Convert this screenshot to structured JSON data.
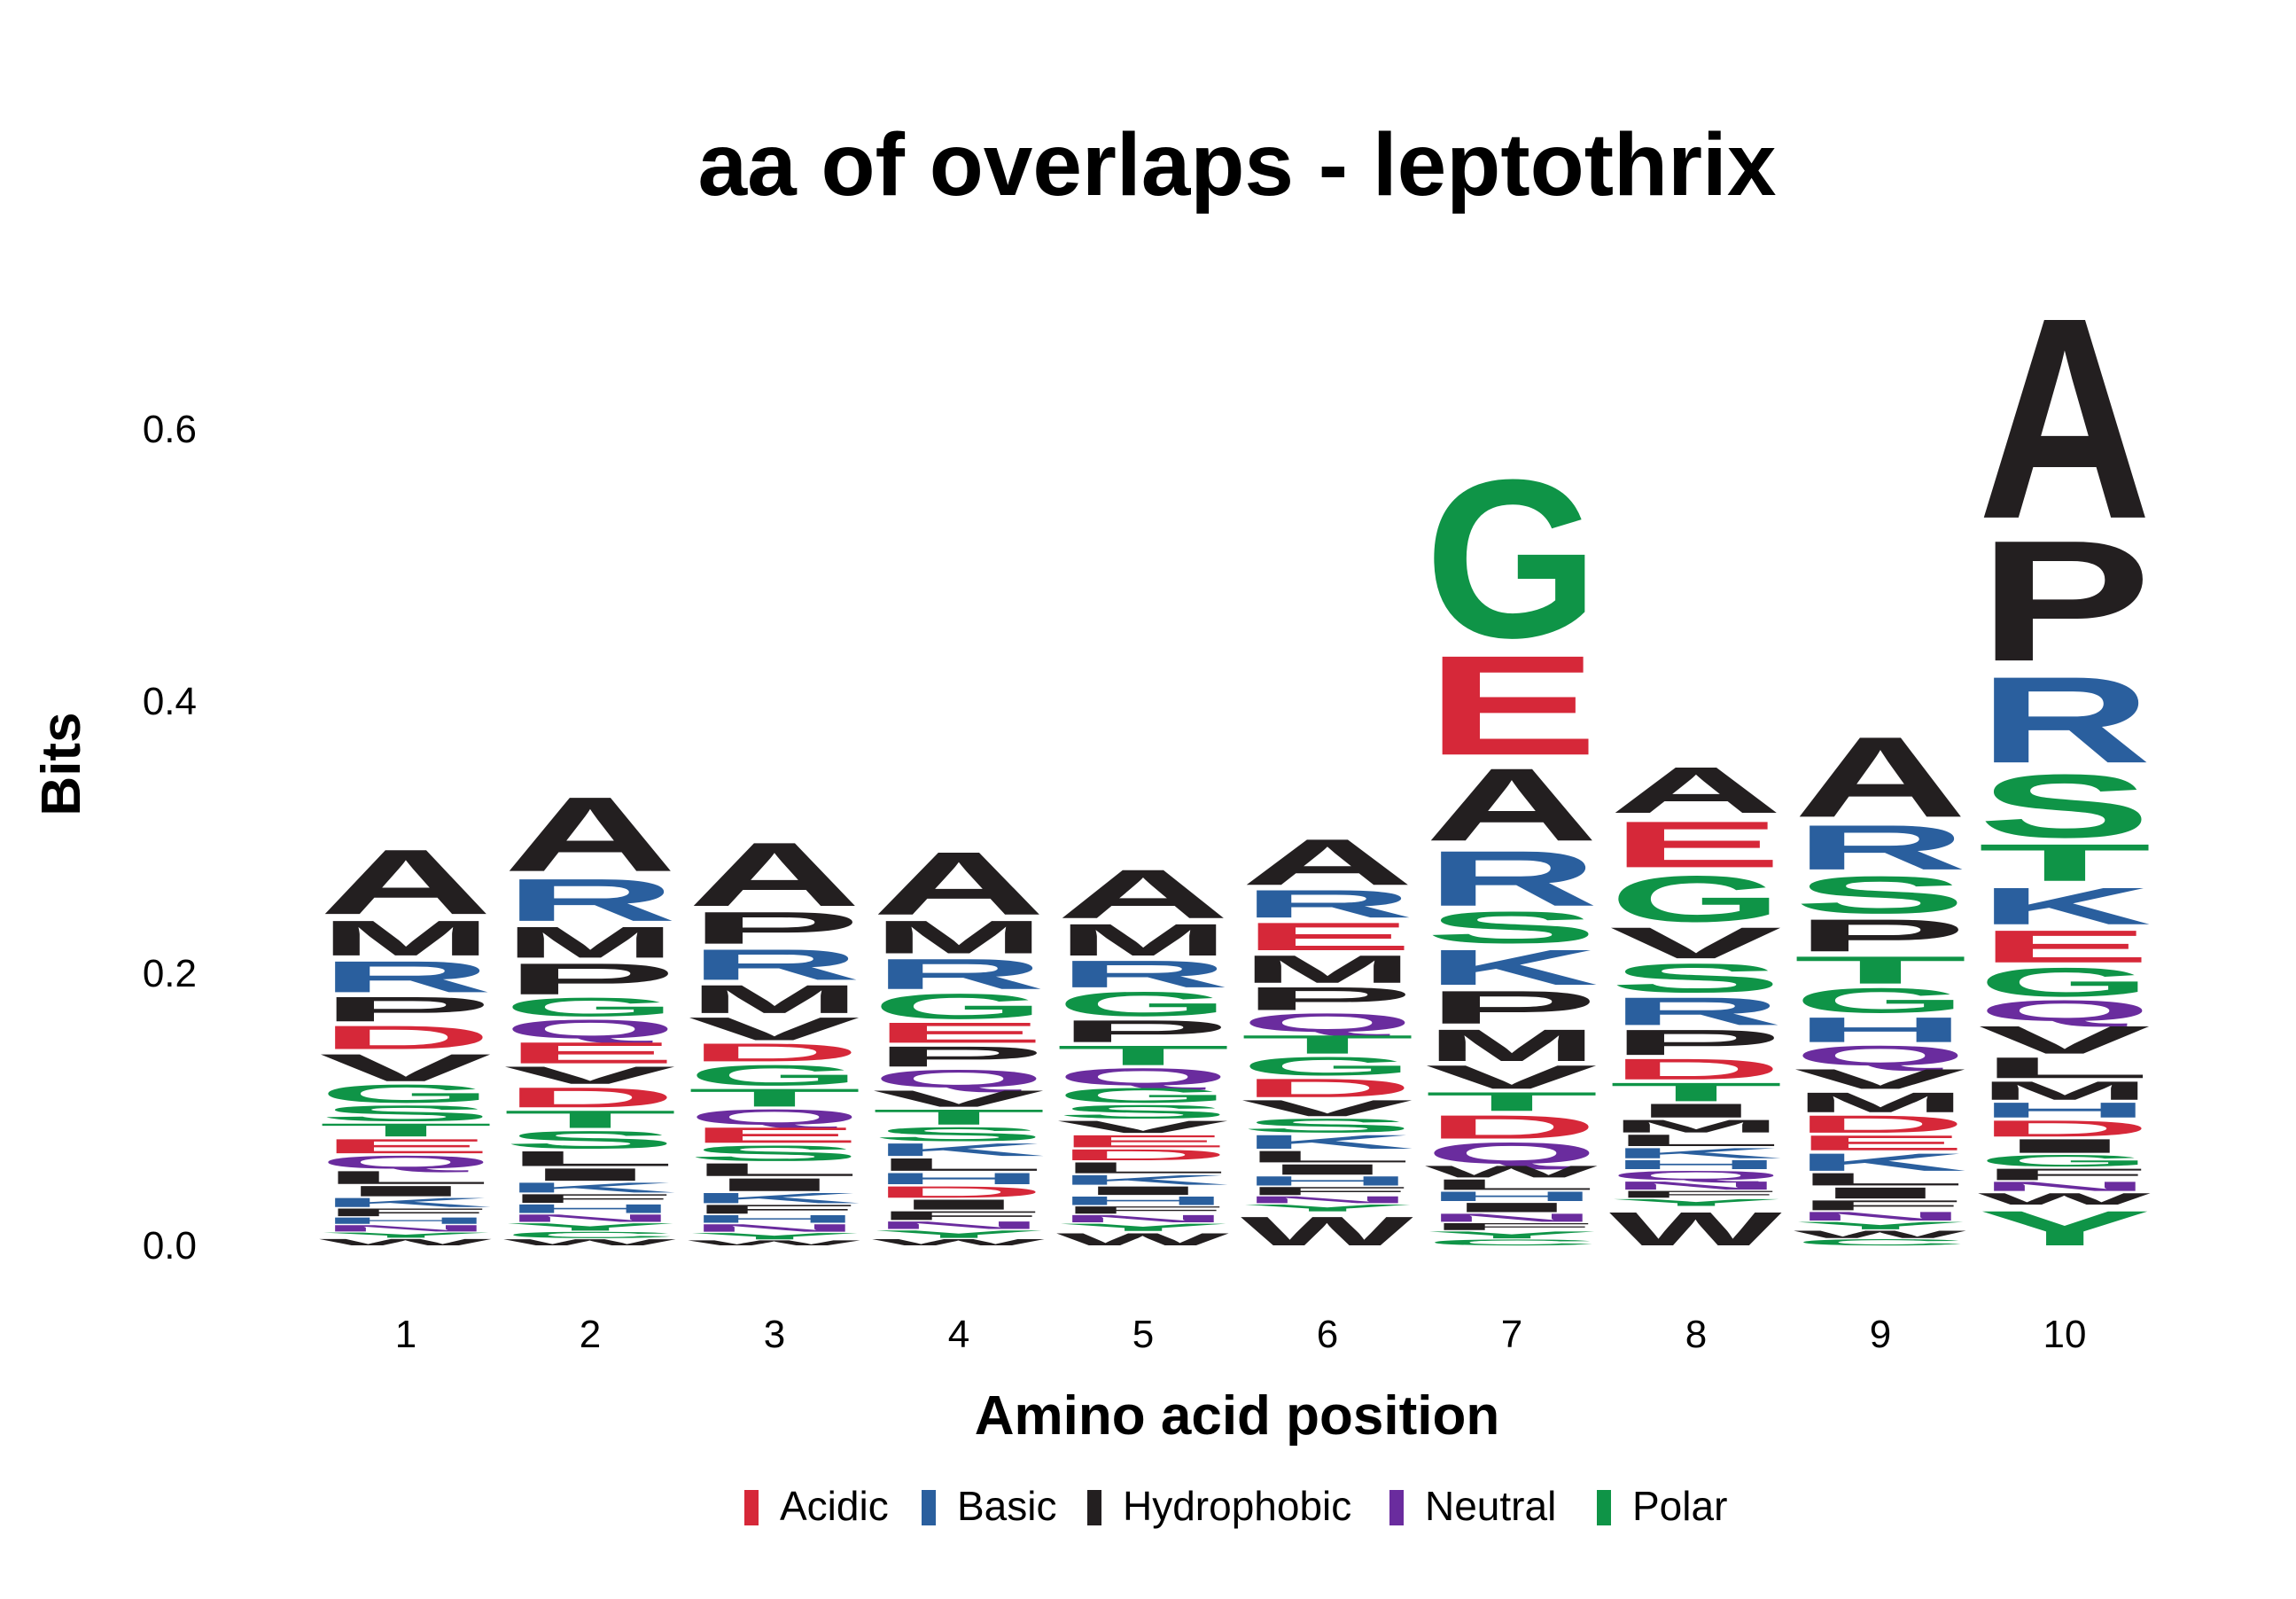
{
  "chart_data": {
    "type": "sequence-logo",
    "title": "aa of overlaps - leptothrix",
    "xlabel": "Amino acid position",
    "ylabel": "Bits",
    "ylim": [
      0,
      0.72
    ],
    "yticks": [
      0.0,
      0.2,
      0.4,
      0.6
    ],
    "ytick_labels": [
      "0.0",
      "0.2",
      "0.4",
      "0.6"
    ],
    "categories": [
      "1",
      "2",
      "3",
      "4",
      "5",
      "6",
      "7",
      "8",
      "9",
      "10"
    ],
    "grid": false,
    "legend_position": "bottom",
    "legend": [
      {
        "label": "Acidic",
        "color": "#d62839"
      },
      {
        "label": "Basic",
        "color": "#2a5f9e"
      },
      {
        "label": "Hydrophobic",
        "color": "#231f20"
      },
      {
        "label": "Neutral",
        "color": "#6a2c9e"
      },
      {
        "label": "Polar",
        "color": "#0f9447"
      }
    ],
    "class_colors": {
      "Acidic": "#d62839",
      "Basic": "#2a5f9e",
      "Hydrophobic": "#231f20",
      "Neutral": "#6a2c9e",
      "Polar": "#0f9447",
      "Other": "#b0b0b0"
    },
    "residue_class": {
      "D": "Acidic",
      "E": "Acidic",
      "K": "Basic",
      "R": "Basic",
      "H": "Basic",
      "A": "Hydrophobic",
      "V": "Hydrophobic",
      "L": "Hydrophobic",
      "I": "Hydrophobic",
      "P": "Hydrophobic",
      "M": "Hydrophobic",
      "F": "Hydrophobic",
      "W": "Hydrophobic",
      "Q": "Neutral",
      "N": "Neutral",
      "G": "Polar",
      "S": "Polar",
      "T": "Polar",
      "Y": "Polar",
      "C": "Polar"
    },
    "positions": [
      {
        "position": "1",
        "total": 0.3,
        "letters": [
          {
            "aa": "A",
            "bits": 0.05
          },
          {
            "aa": "M",
            "bits": 0.027
          },
          {
            "aa": "R",
            "bits": 0.024
          },
          {
            "aa": "P",
            "bits": 0.019
          },
          {
            "aa": "D",
            "bits": 0.018
          },
          {
            "aa": "V",
            "bits": 0.021
          },
          {
            "aa": "G",
            "bits": 0.014
          },
          {
            "aa": "S",
            "bits": 0.012
          },
          {
            "aa": "T",
            "bits": 0.01
          },
          {
            "aa": "E",
            "bits": 0.011
          },
          {
            "aa": "Q",
            "bits": 0.01
          },
          {
            "aa": "L",
            "bits": 0.01
          },
          {
            "aa": "I",
            "bits": 0.008
          },
          {
            "aa": "K",
            "bits": 0.007
          },
          {
            "aa": "F",
            "bits": 0.006
          },
          {
            "aa": "H",
            "bits": 0.005
          },
          {
            "aa": "N",
            "bits": 0.005
          },
          {
            "aa": "Y",
            "bits": 0.004
          },
          {
            "aa": "W",
            "bits": 0.005
          }
        ]
      },
      {
        "position": "2",
        "total": 0.34,
        "letters": [
          {
            "aa": "A",
            "bits": 0.06
          },
          {
            "aa": "R",
            "bits": 0.034
          },
          {
            "aa": "M",
            "bits": 0.025
          },
          {
            "aa": "P",
            "bits": 0.025
          },
          {
            "aa": "G",
            "bits": 0.015
          },
          {
            "aa": "Q",
            "bits": 0.015
          },
          {
            "aa": "E",
            "bits": 0.017
          },
          {
            "aa": "V",
            "bits": 0.014
          },
          {
            "aa": "D",
            "bits": 0.016
          },
          {
            "aa": "T",
            "bits": 0.014
          },
          {
            "aa": "S",
            "bits": 0.014
          },
          {
            "aa": "L",
            "bits": 0.012
          },
          {
            "aa": "I",
            "bits": 0.01
          },
          {
            "aa": "K",
            "bits": 0.008
          },
          {
            "aa": "F",
            "bits": 0.007
          },
          {
            "aa": "H",
            "bits": 0.007
          },
          {
            "aa": "N",
            "bits": 0.006
          },
          {
            "aa": "Y",
            "bits": 0.006
          },
          {
            "aa": "C",
            "bits": 0.005
          },
          {
            "aa": "W",
            "bits": 0.005
          }
        ]
      },
      {
        "position": "3",
        "total": 0.305,
        "letters": [
          {
            "aa": "A",
            "bits": 0.05
          },
          {
            "aa": "P",
            "bits": 0.025
          },
          {
            "aa": "R",
            "bits": 0.024
          },
          {
            "aa": "M",
            "bits": 0.022
          },
          {
            "aa": "V",
            "bits": 0.018
          },
          {
            "aa": "D",
            "bits": 0.014
          },
          {
            "aa": "G",
            "bits": 0.016
          },
          {
            "aa": "T",
            "bits": 0.014
          },
          {
            "aa": "Q",
            "bits": 0.012
          },
          {
            "aa": "E",
            "bits": 0.012
          },
          {
            "aa": "S",
            "bits": 0.012
          },
          {
            "aa": "L",
            "bits": 0.01
          },
          {
            "aa": "I",
            "bits": 0.01
          },
          {
            "aa": "K",
            "bits": 0.008
          },
          {
            "aa": "F",
            "bits": 0.007
          },
          {
            "aa": "H",
            "bits": 0.006
          },
          {
            "aa": "N",
            "bits": 0.006
          },
          {
            "aa": "Y",
            "bits": 0.005
          },
          {
            "aa": "W",
            "bits": 0.004
          }
        ]
      },
      {
        "position": "4",
        "total": 0.298,
        "letters": [
          {
            "aa": "A",
            "bits": 0.05
          },
          {
            "aa": "M",
            "bits": 0.026
          },
          {
            "aa": "R",
            "bits": 0.024
          },
          {
            "aa": "G",
            "bits": 0.02
          },
          {
            "aa": "E",
            "bits": 0.016
          },
          {
            "aa": "P",
            "bits": 0.016
          },
          {
            "aa": "Q",
            "bits": 0.014
          },
          {
            "aa": "V",
            "bits": 0.013
          },
          {
            "aa": "T",
            "bits": 0.012
          },
          {
            "aa": "S",
            "bits": 0.011
          },
          {
            "aa": "K",
            "bits": 0.01
          },
          {
            "aa": "L",
            "bits": 0.01
          },
          {
            "aa": "H",
            "bits": 0.009
          },
          {
            "aa": "D",
            "bits": 0.009
          },
          {
            "aa": "I",
            "bits": 0.008
          },
          {
            "aa": "F",
            "bits": 0.007
          },
          {
            "aa": "N",
            "bits": 0.006
          },
          {
            "aa": "Y",
            "bits": 0.006
          },
          {
            "aa": "W",
            "bits": 0.005
          }
        ]
      },
      {
        "position": "5",
        "total": 0.283,
        "letters": [
          {
            "aa": "A",
            "bits": 0.04
          },
          {
            "aa": "M",
            "bits": 0.026
          },
          {
            "aa": "R",
            "bits": 0.022
          },
          {
            "aa": "G",
            "bits": 0.02
          },
          {
            "aa": "P",
            "bits": 0.018
          },
          {
            "aa": "T",
            "bits": 0.016
          },
          {
            "aa": "Q",
            "bits": 0.014
          },
          {
            "aa": "G",
            "bits": 0.012
          },
          {
            "aa": "S",
            "bits": 0.011
          },
          {
            "aa": "V",
            "bits": 0.01
          },
          {
            "aa": "E",
            "bits": 0.01
          },
          {
            "aa": "D",
            "bits": 0.009
          },
          {
            "aa": "L",
            "bits": 0.009
          },
          {
            "aa": "K",
            "bits": 0.008
          },
          {
            "aa": "I",
            "bits": 0.007
          },
          {
            "aa": "H",
            "bits": 0.007
          },
          {
            "aa": "F",
            "bits": 0.006
          },
          {
            "aa": "N",
            "bits": 0.006
          },
          {
            "aa": "Y",
            "bits": 0.006
          },
          {
            "aa": "W",
            "bits": 0.01
          }
        ]
      },
      {
        "position": "6",
        "total": 0.305,
        "letters": [
          {
            "aa": "A",
            "bits": 0.04
          },
          {
            "aa": "R",
            "bits": 0.024
          },
          {
            "aa": "E",
            "bits": 0.024
          },
          {
            "aa": "M",
            "bits": 0.024
          },
          {
            "aa": "P",
            "bits": 0.02
          },
          {
            "aa": "Q",
            "bits": 0.016
          },
          {
            "aa": "T",
            "bits": 0.016
          },
          {
            "aa": "G",
            "bits": 0.016
          },
          {
            "aa": "D",
            "bits": 0.016
          },
          {
            "aa": "V",
            "bits": 0.014
          },
          {
            "aa": "S",
            "bits": 0.012
          },
          {
            "aa": "K",
            "bits": 0.012
          },
          {
            "aa": "L",
            "bits": 0.01
          },
          {
            "aa": "I",
            "bits": 0.009
          },
          {
            "aa": "H",
            "bits": 0.008
          },
          {
            "aa": "F",
            "bits": 0.007
          },
          {
            "aa": "N",
            "bits": 0.006
          },
          {
            "aa": "Y",
            "bits": 0.006
          },
          {
            "aa": "W",
            "bits": 0.025
          }
        ]
      },
      {
        "position": "7",
        "total": 0.585,
        "letters": [
          {
            "aa": "G",
            "bits": 0.135
          },
          {
            "aa": "E",
            "bits": 0.085
          },
          {
            "aa": "A",
            "bits": 0.062
          },
          {
            "aa": "R",
            "bits": 0.047
          },
          {
            "aa": "S",
            "bits": 0.027
          },
          {
            "aa": "K",
            "bits": 0.03
          },
          {
            "aa": "P",
            "bits": 0.028
          },
          {
            "aa": "M",
            "bits": 0.027
          },
          {
            "aa": "V",
            "bits": 0.02
          },
          {
            "aa": "T",
            "bits": 0.016
          },
          {
            "aa": "D",
            "bits": 0.02
          },
          {
            "aa": "Q",
            "bits": 0.018
          },
          {
            "aa": "W",
            "bits": 0.01
          },
          {
            "aa": "L",
            "bits": 0.009
          },
          {
            "aa": "H",
            "bits": 0.008
          },
          {
            "aa": "I",
            "bits": 0.008
          },
          {
            "aa": "N",
            "bits": 0.007
          },
          {
            "aa": "F",
            "bits": 0.006
          },
          {
            "aa": "Y",
            "bits": 0.006
          },
          {
            "aa": "C",
            "bits": 0.005
          }
        ]
      },
      {
        "position": "8",
        "total": 0.358,
        "letters": [
          {
            "aa": "A",
            "bits": 0.04
          },
          {
            "aa": "E",
            "bits": 0.04
          },
          {
            "aa": "G",
            "bits": 0.04
          },
          {
            "aa": "V",
            "bits": 0.027
          },
          {
            "aa": "S",
            "bits": 0.025
          },
          {
            "aa": "R",
            "bits": 0.024
          },
          {
            "aa": "P",
            "bits": 0.022
          },
          {
            "aa": "D",
            "bits": 0.018
          },
          {
            "aa": "T",
            "bits": 0.016
          },
          {
            "aa": "I",
            "bits": 0.012
          },
          {
            "aa": "M",
            "bits": 0.011
          },
          {
            "aa": "L",
            "bits": 0.01
          },
          {
            "aa": "K",
            "bits": 0.009
          },
          {
            "aa": "H",
            "bits": 0.008
          },
          {
            "aa": "Q",
            "bits": 0.008
          },
          {
            "aa": "N",
            "bits": 0.007
          },
          {
            "aa": "F",
            "bits": 0.006
          },
          {
            "aa": "Y",
            "bits": 0.006
          },
          {
            "aa": "W",
            "bits": 0.029
          }
        ]
      },
      {
        "position": "9",
        "total": 0.385,
        "letters": [
          {
            "aa": "A",
            "bits": 0.065
          },
          {
            "aa": "R",
            "bits": 0.036
          },
          {
            "aa": "S",
            "bits": 0.03
          },
          {
            "aa": "P",
            "bits": 0.026
          },
          {
            "aa": "T",
            "bits": 0.022
          },
          {
            "aa": "G",
            "bits": 0.02
          },
          {
            "aa": "H",
            "bits": 0.02
          },
          {
            "aa": "Q",
            "bits": 0.016
          },
          {
            "aa": "V",
            "bits": 0.016
          },
          {
            "aa": "M",
            "bits": 0.016
          },
          {
            "aa": "D",
            "bits": 0.014
          },
          {
            "aa": "E",
            "bits": 0.012
          },
          {
            "aa": "K",
            "bits": 0.014
          },
          {
            "aa": "L",
            "bits": 0.01
          },
          {
            "aa": "I",
            "bits": 0.009
          },
          {
            "aa": "F",
            "bits": 0.008
          },
          {
            "aa": "N",
            "bits": 0.007
          },
          {
            "aa": "Y",
            "bits": 0.006
          },
          {
            "aa": "W",
            "bits": 0.006
          },
          {
            "aa": "C",
            "bits": 0.005
          }
        ]
      },
      {
        "position": "10",
        "total": 0.71,
        "letters": [
          {
            "aa": "A",
            "bits": 0.175
          },
          {
            "aa": "P",
            "bits": 0.105
          },
          {
            "aa": "R",
            "bits": 0.075
          },
          {
            "aa": "S",
            "bits": 0.055
          },
          {
            "aa": "T",
            "bits": 0.032
          },
          {
            "aa": "K",
            "bits": 0.032
          },
          {
            "aa": "E",
            "bits": 0.028
          },
          {
            "aa": "G",
            "bits": 0.025
          },
          {
            "aa": "Q",
            "bits": 0.018
          },
          {
            "aa": "V",
            "bits": 0.024
          },
          {
            "aa": "L",
            "bits": 0.018
          },
          {
            "aa": "M",
            "bits": 0.016
          },
          {
            "aa": "H",
            "bits": 0.013
          },
          {
            "aa": "D",
            "bits": 0.014
          },
          {
            "aa": "I",
            "bits": 0.012
          },
          {
            "aa": "G",
            "bits": 0.01
          },
          {
            "aa": "F",
            "bits": 0.01
          },
          {
            "aa": "N",
            "bits": 0.008
          },
          {
            "aa": "W",
            "bits": 0.01
          },
          {
            "aa": "Y",
            "bits": 0.03
          }
        ]
      }
    ]
  }
}
